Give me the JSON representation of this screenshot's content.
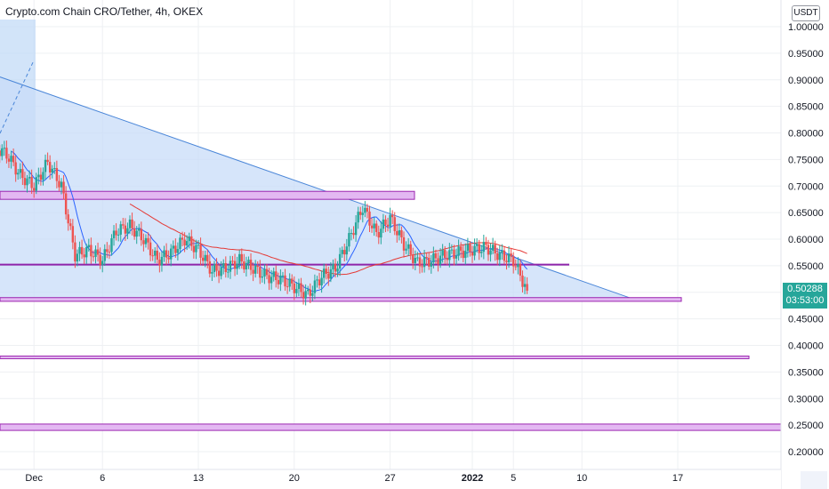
{
  "header": {
    "title": "Crypto.com Chain CRO/Tether, 4h, OKEX",
    "unit_button": "USDT"
  },
  "price_tag": {
    "price": "0.50288",
    "countdown": "03:53:00",
    "color": "#26a69a"
  },
  "colors": {
    "up_candle": "#26a69a",
    "down_candle": "#ef5350",
    "triangle_fill": "#c8dcf8",
    "triangle_edge": "#4a86d8",
    "zone_fill": "#e3b8f2",
    "zone_edge": "#9c27b0",
    "ma_fast": "#2962ff",
    "ma_slow": "#e53935",
    "grid": "#eef0f3"
  },
  "chart_data": {
    "type": "candlestick",
    "title": "Crypto.com Chain CRO/Tether, 4h, OKEX",
    "y_axis_label": "USDT",
    "ylim": [
      0.18,
      1.03
    ],
    "y_ticks": [
      "1.00000",
      "0.95000",
      "0.90000",
      "0.85000",
      "0.80000",
      "0.75000",
      "0.70000",
      "0.65000",
      "0.60000",
      "0.55000",
      "0.50000",
      "0.45000",
      "0.40000",
      "0.35000",
      "0.30000",
      "0.25000",
      "0.20000"
    ],
    "x_ticks": [
      "Dec",
      "6",
      "13",
      "20",
      "27",
      "2022",
      "5",
      "10",
      "17"
    ],
    "last_price": 0.50288,
    "grid": true,
    "close_path": [
      {
        "d": "Nov 28",
        "p": 0.775
      },
      {
        "d": "Nov 29",
        "p": 0.76
      },
      {
        "d": "Nov 30",
        "p": 0.72
      },
      {
        "d": "Dec 1",
        "p": 0.7
      },
      {
        "d": "Dec 2",
        "p": 0.745
      },
      {
        "d": "Dec 3",
        "p": 0.7
      },
      {
        "d": "Dec 4",
        "p": 0.57
      },
      {
        "d": "Dec 5",
        "p": 0.58
      },
      {
        "d": "Dec 6",
        "p": 0.56
      },
      {
        "d": "Dec 7",
        "p": 0.615
      },
      {
        "d": "Dec 8",
        "p": 0.625
      },
      {
        "d": "Dec 9",
        "p": 0.6
      },
      {
        "d": "Dec 10",
        "p": 0.56
      },
      {
        "d": "Dec 11",
        "p": 0.575
      },
      {
        "d": "Dec 12",
        "p": 0.6
      },
      {
        "d": "Dec 13",
        "p": 0.58
      },
      {
        "d": "Dec 14",
        "p": 0.54
      },
      {
        "d": "Dec 15",
        "p": 0.545
      },
      {
        "d": "Dec 16",
        "p": 0.56
      },
      {
        "d": "Dec 17",
        "p": 0.545
      },
      {
        "d": "Dec 18",
        "p": 0.53
      },
      {
        "d": "Dec 19",
        "p": 0.525
      },
      {
        "d": "Dec 20",
        "p": 0.51
      },
      {
        "d": "Dec 21",
        "p": 0.495
      },
      {
        "d": "Dec 22",
        "p": 0.53
      },
      {
        "d": "Dec 23",
        "p": 0.545
      },
      {
        "d": "Dec 24",
        "p": 0.6
      },
      {
        "d": "Dec 25",
        "p": 0.66
      },
      {
        "d": "Dec 26",
        "p": 0.61
      },
      {
        "d": "Dec 27",
        "p": 0.64
      },
      {
        "d": "Dec 28",
        "p": 0.59
      },
      {
        "d": "Dec 29",
        "p": 0.555
      },
      {
        "d": "Dec 30",
        "p": 0.56
      },
      {
        "d": "Dec 31",
        "p": 0.57
      },
      {
        "d": "Jan 1",
        "p": 0.575
      },
      {
        "d": "Jan 2",
        "p": 0.58
      },
      {
        "d": "Jan 3",
        "p": 0.585
      },
      {
        "d": "Jan 4",
        "p": 0.57
      },
      {
        "d": "Jan 5",
        "p": 0.56
      },
      {
        "d": "Jan 6",
        "p": 0.503
      }
    ],
    "annotations": {
      "descending_trendline": [
        {
          "d": "Nov 28",
          "p": 0.91
        },
        {
          "d": "Jan 14",
          "p": 0.485
        }
      ],
      "support_line": 0.485,
      "resistance_line": 0.552,
      "supply_zone": [
        0.675,
        0.69
      ],
      "demand_zone_1": [
        0.483,
        0.49
      ],
      "demand_zone_2": [
        0.375,
        0.38
      ],
      "demand_zone_3": [
        0.24,
        0.252
      ]
    }
  }
}
